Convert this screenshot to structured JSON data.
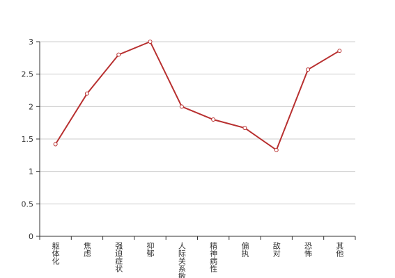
{
  "chart_data": {
    "type": "line",
    "categories": [
      "躯体化",
      "焦虑",
      "强迫症状",
      "抑郁",
      "人际关系敏感",
      "精神病性",
      "偏执",
      "敌对",
      "恐怖",
      "其他"
    ],
    "values": [
      1.42,
      2.2,
      2.8,
      3.0,
      2.0,
      1.8,
      1.67,
      1.33,
      2.57,
      2.86
    ],
    "color": "#b83030",
    "ylim": [
      0,
      3
    ],
    "yticks": [
      0,
      0.5,
      1,
      1.5,
      2,
      2.5,
      3
    ],
    "grid": true
  }
}
